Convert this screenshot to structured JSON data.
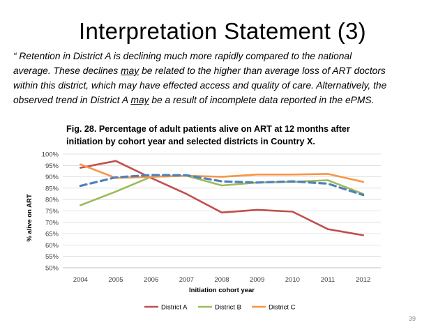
{
  "slide": {
    "title": "Interpretation Statement (3)",
    "statement_line1": "“ Retention in District A is declining much more rapidly compared to the national",
    "statement_line2_a": "average. These declines ",
    "statement_may_1": "may",
    "statement_line2_b": " be related to the higher than average loss of ART doctors",
    "statement_line3": "within this district, which may have effected access and quality of care. Alternatively, the",
    "statement_line4_a": "observed trend in District A ",
    "statement_may_2": "may",
    "statement_line4_b": " be a result of incomplete data reported in the ePMS.",
    "figure_caption_line1": "Fig. 28. Percentage of adult patients alive on ART at 12 months after",
    "figure_caption_line2": "initiation by cohort year and selected districts in Country X.",
    "page_number": "39"
  },
  "chart_data": {
    "type": "line",
    "title": "Fig. 28. Percentage of adult patients alive on ART at 12 months after initiation by cohort year and selected districts in Country X.",
    "xlabel": "Initiation cohort year",
    "ylabel": "% alive on ART",
    "categories": [
      "2004",
      "2005",
      "2006",
      "2007",
      "2008",
      "2009",
      "2010",
      "2011",
      "2012"
    ],
    "ylim": [
      50,
      100
    ],
    "ytick_labels": [
      "50%",
      "55%",
      "60%",
      "65%",
      "70%",
      "75%",
      "80%",
      "85%",
      "90%",
      "95%",
      "100%"
    ],
    "grid": true,
    "legend_position": "bottom",
    "series": [
      {
        "name": "District A",
        "color": "#c0504d",
        "style": "solid",
        "values": [
          94,
          97,
          89.5,
          82.5,
          74.3,
          75.5,
          74.7,
          67,
          64.3
        ]
      },
      {
        "name": "District B",
        "color": "#9bbb59",
        "style": "solid",
        "values": [
          77.5,
          83.5,
          90,
          90.5,
          86.2,
          87.5,
          87.8,
          88.5,
          82.5
        ]
      },
      {
        "name": "District C",
        "color": "#f79646",
        "style": "solid",
        "values": [
          95.5,
          89.5,
          90,
          90.5,
          90,
          91,
          91,
          91.3,
          87.8
        ]
      },
      {
        "name": "National",
        "color": "#4f81bd",
        "style": "dashed",
        "in_legend": false,
        "values": [
          86,
          89.8,
          90.8,
          90.7,
          88,
          87.5,
          88,
          87,
          82
        ]
      }
    ]
  }
}
